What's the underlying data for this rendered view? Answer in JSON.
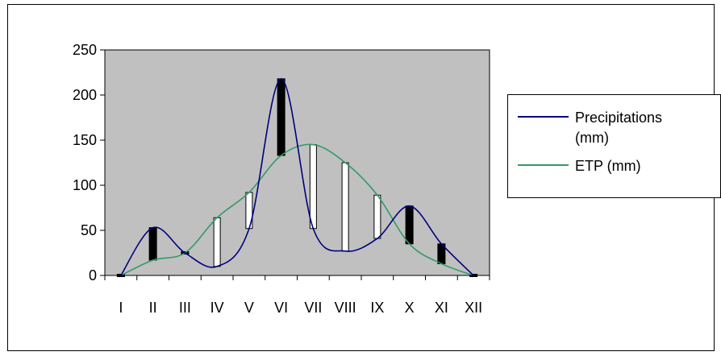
{
  "chart_data": {
    "type": "line",
    "categories": [
      "I",
      "II",
      "III",
      "IV",
      "V",
      "VI",
      "VII",
      "VIII",
      "IX",
      "X",
      "XI",
      "XII"
    ],
    "series": [
      {
        "name": "Precipitations (mm)",
        "color": "#000080",
        "values": [
          0,
          53,
          25,
          10,
          52,
          218,
          52,
          27,
          41,
          77,
          35,
          0
        ]
      },
      {
        "name": "ETP (mm)",
        "color": "#339966",
        "values": [
          0,
          17,
          25,
          64,
          92,
          133,
          145,
          125,
          89,
          35,
          13,
          0
        ]
      }
    ],
    "ylim": [
      0,
      250
    ],
    "yticks": [
      0,
      50,
      100,
      150,
      200,
      250
    ],
    "legend": {
      "placement": "right",
      "labels": [
        {
          "lines": [
            "Precipitations",
            "(mm)"
          ]
        },
        {
          "lines": [
            "ETP (mm)"
          ]
        }
      ]
    },
    "bars": {
      "surplus_color": "#000000",
      "deficit_color": "#ffffff"
    },
    "plot_background": "#c0c0c0",
    "grid": false
  }
}
